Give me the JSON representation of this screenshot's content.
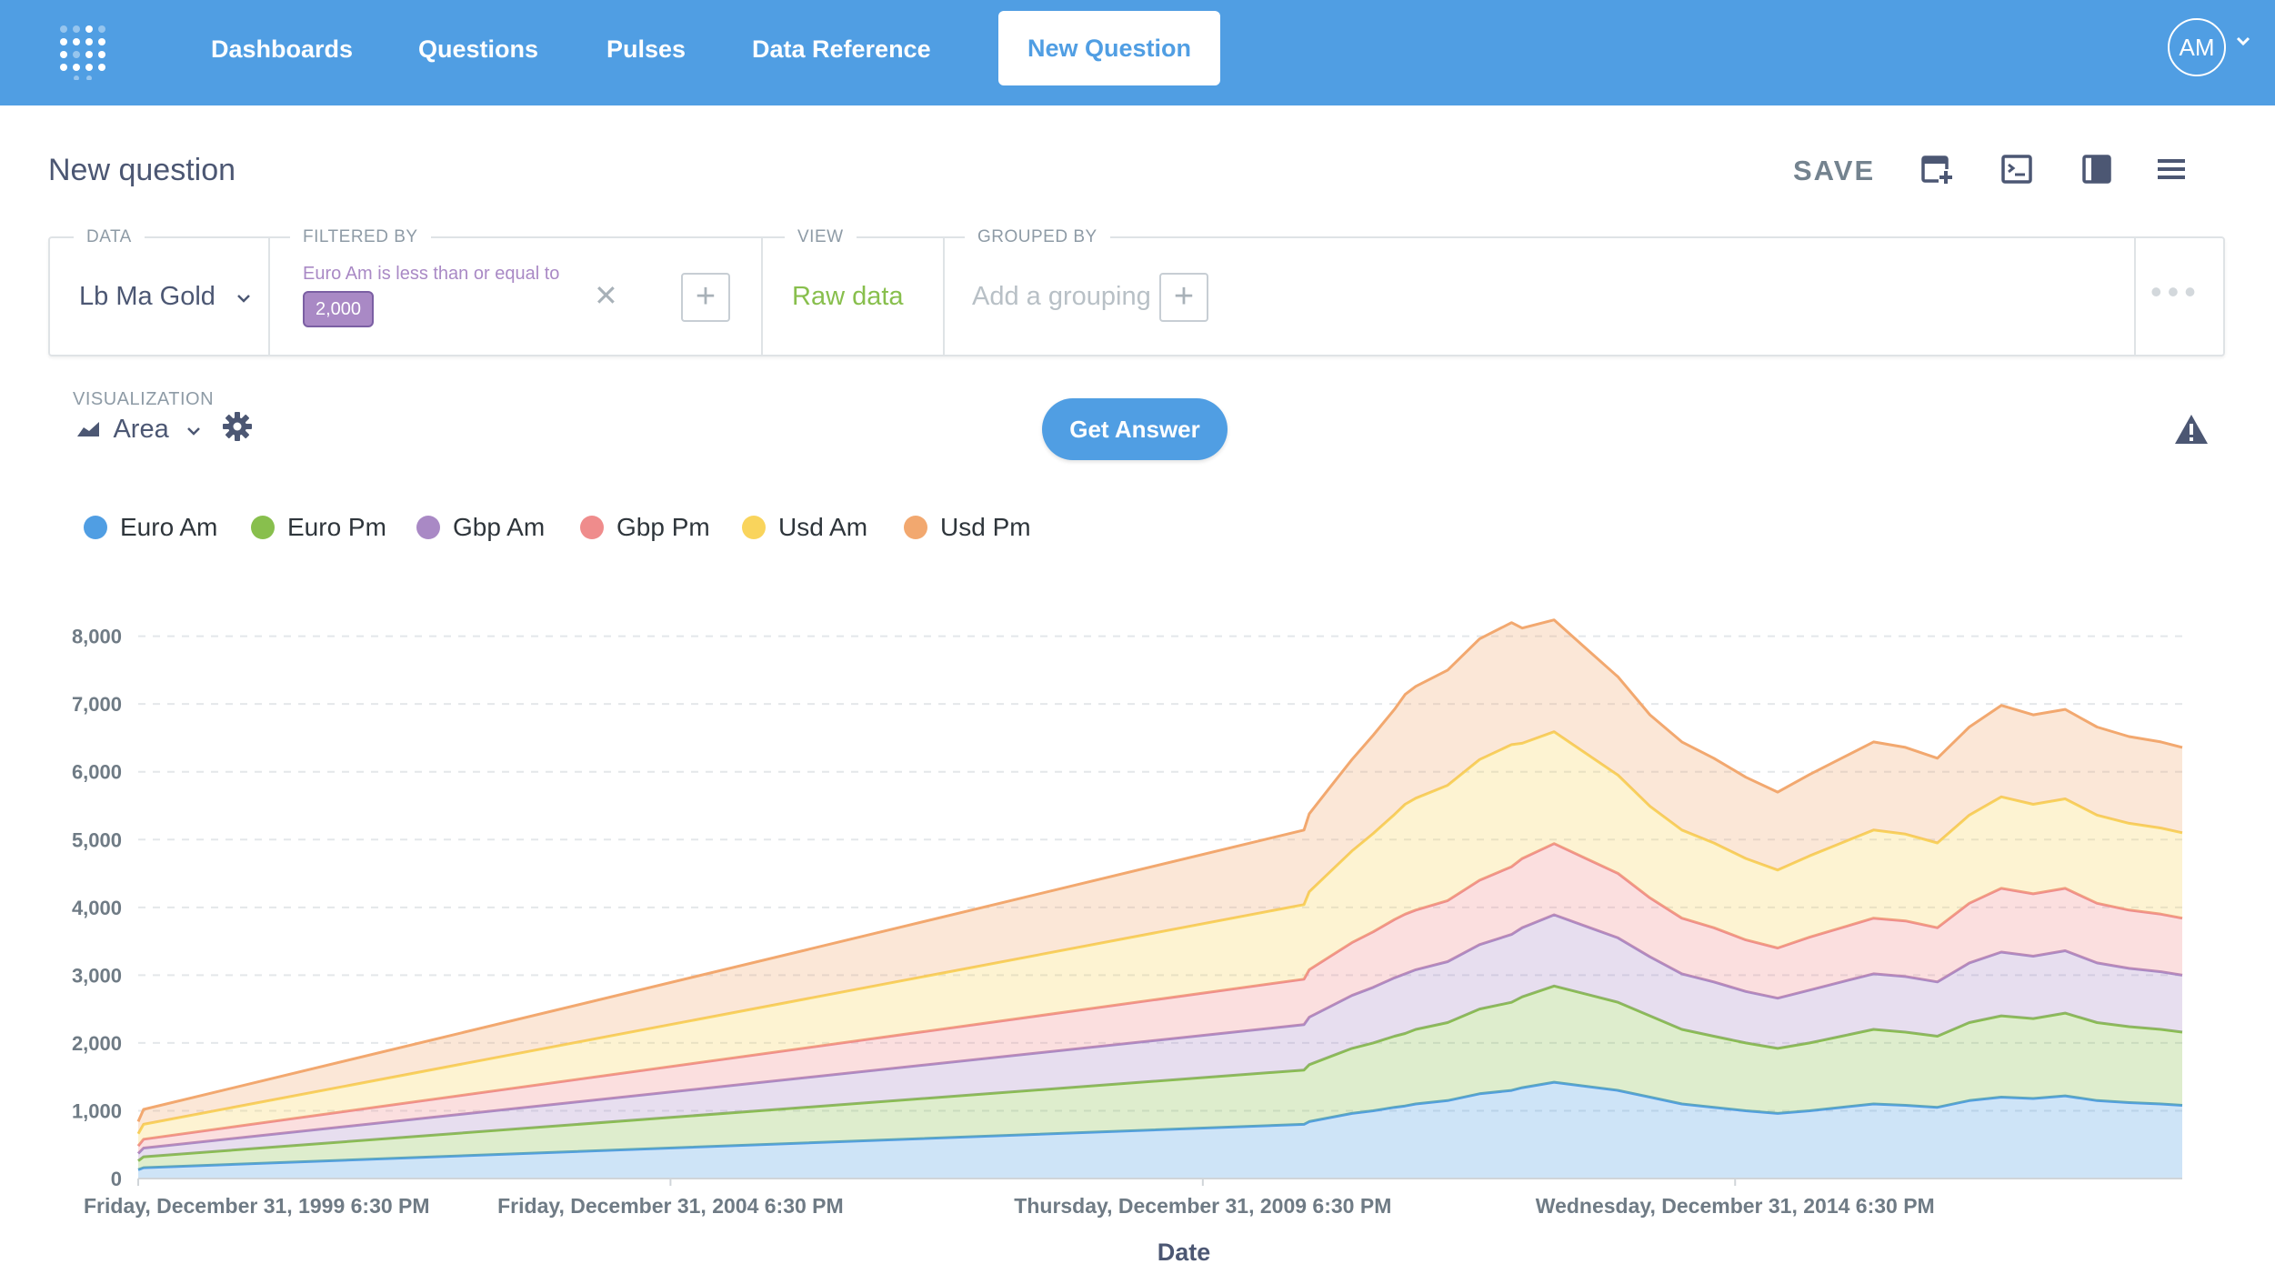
{
  "nav": {
    "items": [
      "Dashboards",
      "Questions",
      "Pulses",
      "Data Reference"
    ],
    "active": "New Question",
    "avatar": "AM"
  },
  "header": {
    "title": "New question",
    "save": "SAVE"
  },
  "query": {
    "data_label": "DATA",
    "data_value": "Lb Ma Gold",
    "filter_label": "FILTERED BY",
    "filter_text": "Euro Am is less than or equal to",
    "filter_value": "2,000",
    "view_label": "VIEW",
    "view_value": "Raw data",
    "group_label": "GROUPED BY",
    "group_placeholder": "Add a grouping"
  },
  "viz": {
    "label": "VISUALIZATION",
    "type": "Area",
    "get_answer": "Get Answer"
  },
  "chart_data": {
    "type": "area",
    "stacked": true,
    "xlabel": "Date",
    "x_tick_labels": [
      "Friday, December 31, 1999 6:30 PM",
      "Friday, December 31, 2004 6:30 PM",
      "Thursday, December 31, 2009 6:30 PM",
      "Wednesday, December 31, 2014 6:30 PM"
    ],
    "x_ticks": [
      2000,
      2005,
      2010,
      2015
    ],
    "xlim": [
      2000,
      2019.2
    ],
    "ylim": [
      0,
      8800
    ],
    "y_ticks": [
      0,
      1000,
      2000,
      3000,
      4000,
      5000,
      6000,
      7000,
      8000
    ],
    "y_tick_labels": [
      "0",
      "1,000",
      "2,000",
      "3,000",
      "4,000",
      "5,000",
      "6,000",
      "7,000",
      "8,000"
    ],
    "grid": true,
    "legend_position": "top-left",
    "x": [
      2000,
      2000.05,
      2010.95,
      2011.0,
      2011.2,
      2011.4,
      2011.6,
      2011.8,
      2011.9,
      2012.0,
      2012.3,
      2012.6,
      2012.9,
      2013.0,
      2013.3,
      2013.6,
      2013.9,
      2014.2,
      2014.5,
      2014.8,
      2015.1,
      2015.4,
      2015.7,
      2016.0,
      2016.3,
      2016.6,
      2016.9,
      2017.2,
      2017.5,
      2017.8,
      2018.1,
      2018.4,
      2018.7,
      2019.0,
      2019.2
    ],
    "series": [
      {
        "name": "Euro Am",
        "color": "#509ee3",
        "values": [
          130,
          160,
          800,
          840,
          900,
          960,
          1000,
          1050,
          1070,
          1100,
          1150,
          1250,
          1300,
          1340,
          1420,
          1360,
          1300,
          1200,
          1100,
          1050,
          1000,
          960,
          1000,
          1050,
          1100,
          1080,
          1050,
          1150,
          1200,
          1180,
          1220,
          1150,
          1120,
          1100,
          1080
        ]
      },
      {
        "name": "Euro Pm",
        "color": "#88bf4d",
        "values": [
          130,
          160,
          800,
          840,
          900,
          960,
          1000,
          1050,
          1070,
          1100,
          1150,
          1250,
          1300,
          1340,
          1420,
          1360,
          1300,
          1200,
          1100,
          1050,
          1000,
          960,
          1000,
          1050,
          1100,
          1080,
          1050,
          1150,
          1200,
          1180,
          1220,
          1150,
          1120,
          1100,
          1080
        ]
      },
      {
        "name": "Gbp Am",
        "color": "#a989c5",
        "values": [
          110,
          130,
          670,
          700,
          740,
          780,
          820,
          860,
          880,
          880,
          900,
          950,
          1000,
          1020,
          1050,
          1000,
          950,
          870,
          820,
          800,
          760,
          740,
          780,
          800,
          820,
          820,
          800,
          880,
          940,
          920,
          920,
          880,
          860,
          850,
          840
        ]
      },
      {
        "name": "Gbp Pm",
        "color": "#ef8c8c",
        "values": [
          110,
          130,
          670,
          700,
          740,
          780,
          820,
          860,
          880,
          880,
          900,
          950,
          1000,
          1020,
          1050,
          1000,
          950,
          870,
          820,
          800,
          760,
          740,
          780,
          800,
          820,
          820,
          800,
          880,
          940,
          920,
          920,
          880,
          860,
          850,
          840
        ]
      },
      {
        "name": "Usd Am",
        "color": "#f9d45c",
        "values": [
          180,
          220,
          1100,
          1150,
          1250,
          1350,
          1450,
          1550,
          1620,
          1650,
          1700,
          1780,
          1800,
          1700,
          1650,
          1550,
          1450,
          1350,
          1300,
          1250,
          1200,
          1150,
          1200,
          1250,
          1300,
          1280,
          1250,
          1300,
          1350,
          1320,
          1320,
          1300,
          1280,
          1270,
          1260
        ]
      },
      {
        "name": "Usd Pm",
        "color": "#f2a86f",
        "values": [
          180,
          220,
          1100,
          1150,
          1250,
          1350,
          1450,
          1550,
          1620,
          1650,
          1700,
          1780,
          1800,
          1700,
          1650,
          1550,
          1450,
          1350,
          1300,
          1250,
          1200,
          1150,
          1200,
          1250,
          1300,
          1280,
          1250,
          1300,
          1350,
          1320,
          1320,
          1300,
          1280,
          1270,
          1260
        ]
      }
    ]
  }
}
